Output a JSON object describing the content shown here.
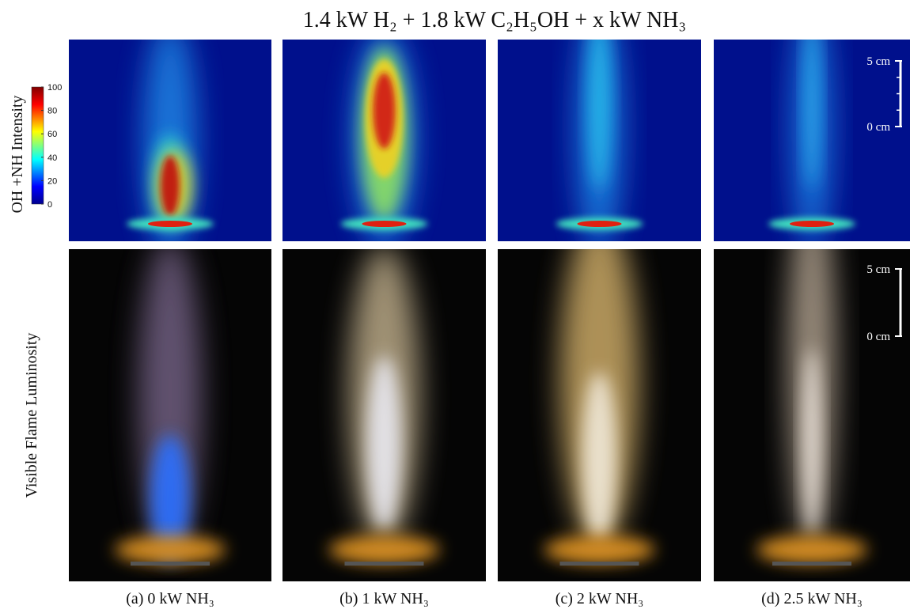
{
  "title": "1.4 kW H₂ + 1.8 kW C₂H₅OH + x kW NH₃",
  "colorbar": {
    "label": "OH +NH Intensity",
    "range": [
      0,
      100
    ],
    "ticks": [
      0,
      20,
      40,
      60,
      80,
      100
    ]
  },
  "row_labels": [
    "OH +NH Intensity",
    "Visible Flame Luminosity"
  ],
  "scale_bars": [
    {
      "top": "5 cm",
      "bottom": "0 cm"
    },
    {
      "top": "5 cm",
      "bottom": "0 cm"
    }
  ],
  "panels": [
    "(a) 0 kW NH₃",
    "(b) 1 kW NH₃",
    "(c) 2 kW NH₃",
    "(d) 2.5 kW NH₃"
  ]
}
